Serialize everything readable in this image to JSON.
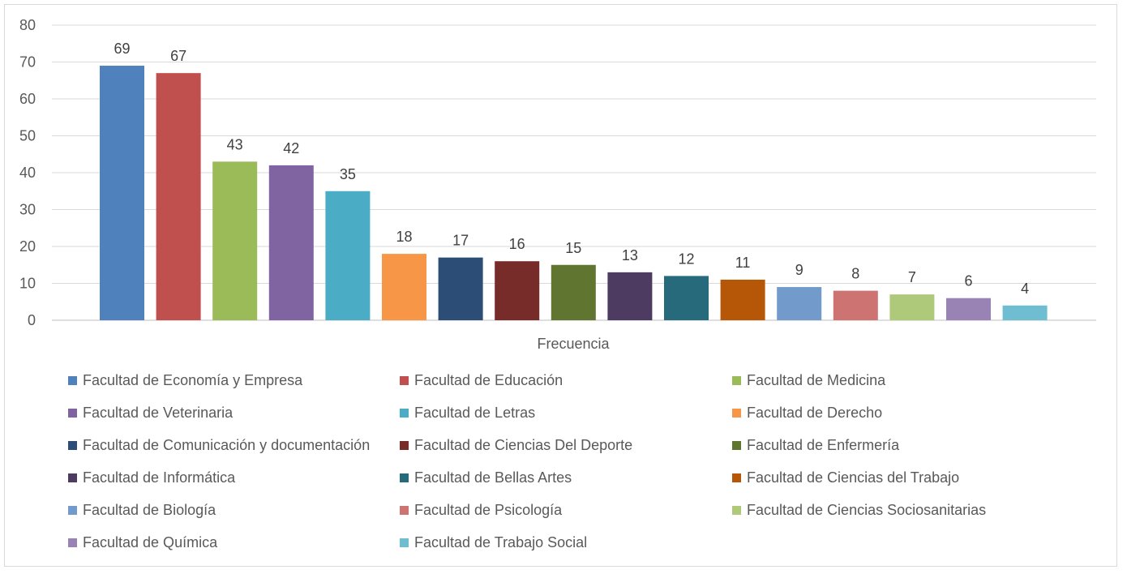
{
  "chart_data": {
    "type": "bar",
    "title": "",
    "xlabel": "Frecuencia",
    "ylabel": "",
    "ylim": [
      0,
      80
    ],
    "yticks": [
      0,
      10,
      20,
      30,
      40,
      50,
      60,
      70,
      80
    ],
    "grid": true,
    "legend_position": "bottom",
    "series": [
      {
        "name": "Facultad de Economía y Empresa",
        "value": 69,
        "color": "#4f81bd"
      },
      {
        "name": "Facultad de Educación",
        "value": 67,
        "color": "#c0504d"
      },
      {
        "name": "Facultad de Medicina",
        "value": 43,
        "color": "#9bbb59"
      },
      {
        "name": "Facultad de Veterinaria",
        "value": 42,
        "color": "#8064a2"
      },
      {
        "name": "Facultad de Letras",
        "value": 35,
        "color": "#4bacc6"
      },
      {
        "name": "Facultad de Derecho",
        "value": 18,
        "color": "#f79646"
      },
      {
        "name": "Facultad de Comunicación y documentación",
        "value": 17,
        "color": "#2c4d75"
      },
      {
        "name": "Facultad de Ciencias Del Deporte",
        "value": 16,
        "color": "#772c2a"
      },
      {
        "name": "Facultad de Enfermería",
        "value": 15,
        "color": "#5f7530"
      },
      {
        "name": "Facultad de Informática",
        "value": 13,
        "color": "#4d3b62"
      },
      {
        "name": "Facultad de Bellas Artes",
        "value": 12,
        "color": "#276a7c"
      },
      {
        "name": "Facultad de Ciencias del Trabajo",
        "value": 11,
        "color": "#b65708"
      },
      {
        "name": "Facultad de Biología",
        "value": 9,
        "color": "#729aca"
      },
      {
        "name": "Facultad de Psicología",
        "value": 8,
        "color": "#cd7371"
      },
      {
        "name": "Facultad de Ciencias Sociosanitarias",
        "value": 7,
        "color": "#afc97a"
      },
      {
        "name": "Facultad de Química",
        "value": 6,
        "color": "#9983b5"
      },
      {
        "name": "Facultad de Trabajo Social",
        "value": 4,
        "color": "#6fbdd1"
      }
    ]
  }
}
